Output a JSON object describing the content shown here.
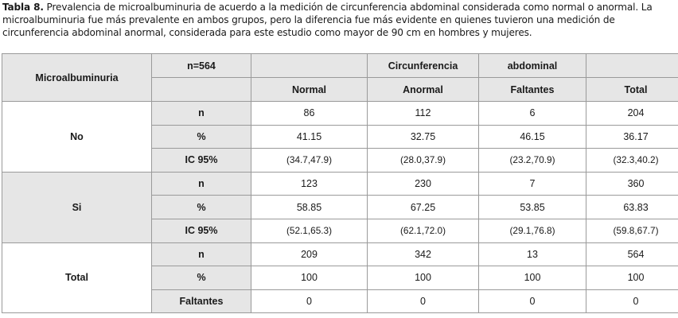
{
  "caption": {
    "label": "Tabla 8.",
    "text": " Prevalencia de microalbuminuria de acuerdo a la medición de circunferencia abdominal considerada como normal o anormal. La microalbuminuria fue más prevalente en ambos grupos, pero la diferencia fue más evidente en quienes tuvieron una medición de circunferencia abdominal anormal, considerada para este estudio como mayor de 90 cm en hombres y mujeres."
  },
  "header": {
    "row_header": "Microalbuminuria",
    "n_total": "n=564",
    "group_left": "Circunferencia",
    "group_right": "abdominal",
    "columns": [
      "Normal",
      "Anormal",
      "Faltantes",
      "Total"
    ]
  },
  "groups": [
    {
      "label": "No",
      "rows": [
        {
          "stat": "n",
          "values": [
            "86",
            "112",
            "6",
            "204"
          ]
        },
        {
          "stat": "%",
          "values": [
            "41.15",
            "32.75",
            "46.15",
            "36.17"
          ]
        },
        {
          "stat": "IC 95%",
          "values": [
            "(34.7,47.9)",
            "(28.0,37.9)",
            "(23.2,70.9)",
            "(32.3,40.2)"
          ]
        }
      ]
    },
    {
      "label": "Si",
      "rows": [
        {
          "stat": "n",
          "values": [
            "123",
            "230",
            "7",
            "360"
          ]
        },
        {
          "stat": "%",
          "values": [
            "58.85",
            "67.25",
            "53.85",
            "63.83"
          ]
        },
        {
          "stat": "IC 95%",
          "values": [
            "(52.1,65.3)",
            "(62.1,72.0)",
            "(29.1,76.8)",
            "(59.8,67.7)"
          ]
        }
      ]
    },
    {
      "label": "Total",
      "rows": [
        {
          "stat": "n",
          "values": [
            "209",
            "342",
            "13",
            "564"
          ]
        },
        {
          "stat": "%",
          "values": [
            "100",
            "100",
            "100",
            "100"
          ]
        },
        {
          "stat": "Faltantes",
          "values": [
            "0",
            "0",
            "0",
            "0"
          ]
        }
      ]
    }
  ]
}
